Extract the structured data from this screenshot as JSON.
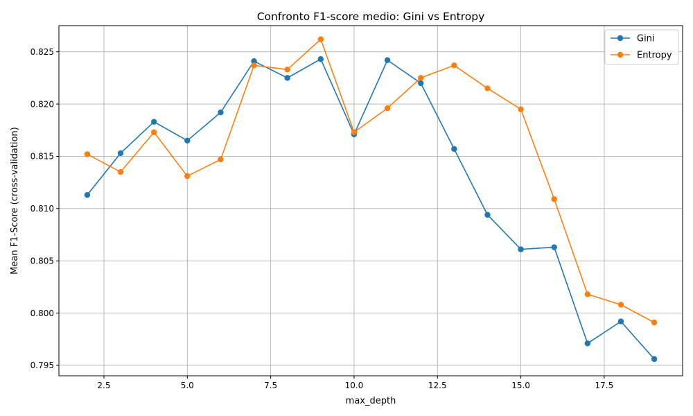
{
  "chart_data": {
    "type": "line",
    "title": "Confronto F1-score medio: Gini vs Entropy",
    "xlabel": "max_depth",
    "ylabel": "Mean F1-Score (cross-validation)",
    "xlim": [
      1.15,
      19.85
    ],
    "ylim": [
      0.794,
      0.8275
    ],
    "xticks": [
      2.5,
      5.0,
      7.5,
      10.0,
      12.5,
      15.0,
      17.5
    ],
    "xtick_labels": [
      "2.5",
      "5.0",
      "7.5",
      "10.0",
      "12.5",
      "15.0",
      "17.5"
    ],
    "yticks": [
      0.795,
      0.8,
      0.805,
      0.81,
      0.815,
      0.82,
      0.825
    ],
    "ytick_labels": [
      "0.795",
      "0.800",
      "0.805",
      "0.810",
      "0.815",
      "0.820",
      "0.825"
    ],
    "grid": true,
    "legend_position": "top-right",
    "x": [
      2,
      3,
      4,
      5,
      6,
      7,
      8,
      9,
      10,
      11,
      12,
      13,
      14,
      15,
      16,
      17,
      18,
      19
    ],
    "series": [
      {
        "name": "Gini",
        "color": "#1f77b4",
        "marker": "circle",
        "values": [
          0.8113,
          0.8153,
          0.8183,
          0.8165,
          0.8192,
          0.8241,
          0.8225,
          0.8243,
          0.8171,
          0.8242,
          0.822,
          0.8157,
          0.8094,
          0.8061,
          0.8063,
          0.7971,
          0.7992,
          0.7956
        ]
      },
      {
        "name": "Entropy",
        "color": "#ff7f0e",
        "marker": "circle",
        "values": [
          0.8152,
          0.8135,
          0.8173,
          0.8131,
          0.8147,
          0.8237,
          0.8233,
          0.8262,
          0.8173,
          0.8196,
          0.8225,
          0.8237,
          0.8215,
          0.8195,
          0.8109,
          0.8018,
          0.8008,
          0.7991
        ]
      }
    ]
  }
}
